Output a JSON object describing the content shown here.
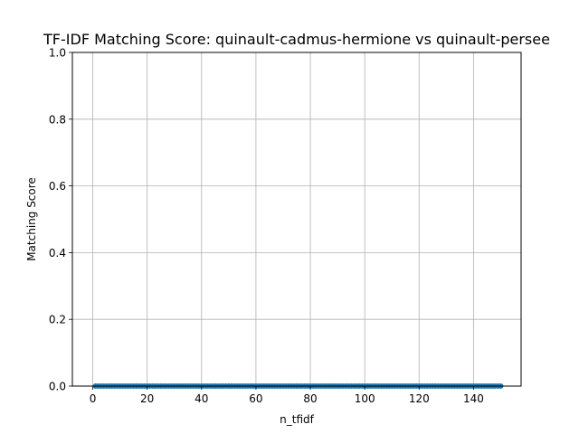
{
  "chart_data": {
    "type": "line",
    "title": "TF-IDF Matching Score: quinault-cadmus-hermione vs quinault-persee",
    "xlabel": "n_tfidf",
    "ylabel": "Matching Score",
    "xlim": [
      -7.5,
      157.5
    ],
    "ylim": [
      0.0,
      1.0
    ],
    "xticks": [
      0,
      20,
      40,
      60,
      80,
      100,
      120,
      140
    ],
    "yticks": [
      0.0,
      0.2,
      0.4,
      0.6,
      0.8,
      1.0
    ],
    "xtick_labels": [
      "0",
      "20",
      "40",
      "60",
      "80",
      "100",
      "120",
      "140"
    ],
    "ytick_labels": [
      "0.0",
      "0.2",
      "0.4",
      "0.6",
      "0.8",
      "1.0"
    ],
    "grid": true,
    "marker": "circle",
    "series": [
      {
        "color": "#1f77b4",
        "x_start": 1,
        "x_end": 150,
        "x_step": 1,
        "y_constant": 0.0
      }
    ]
  }
}
